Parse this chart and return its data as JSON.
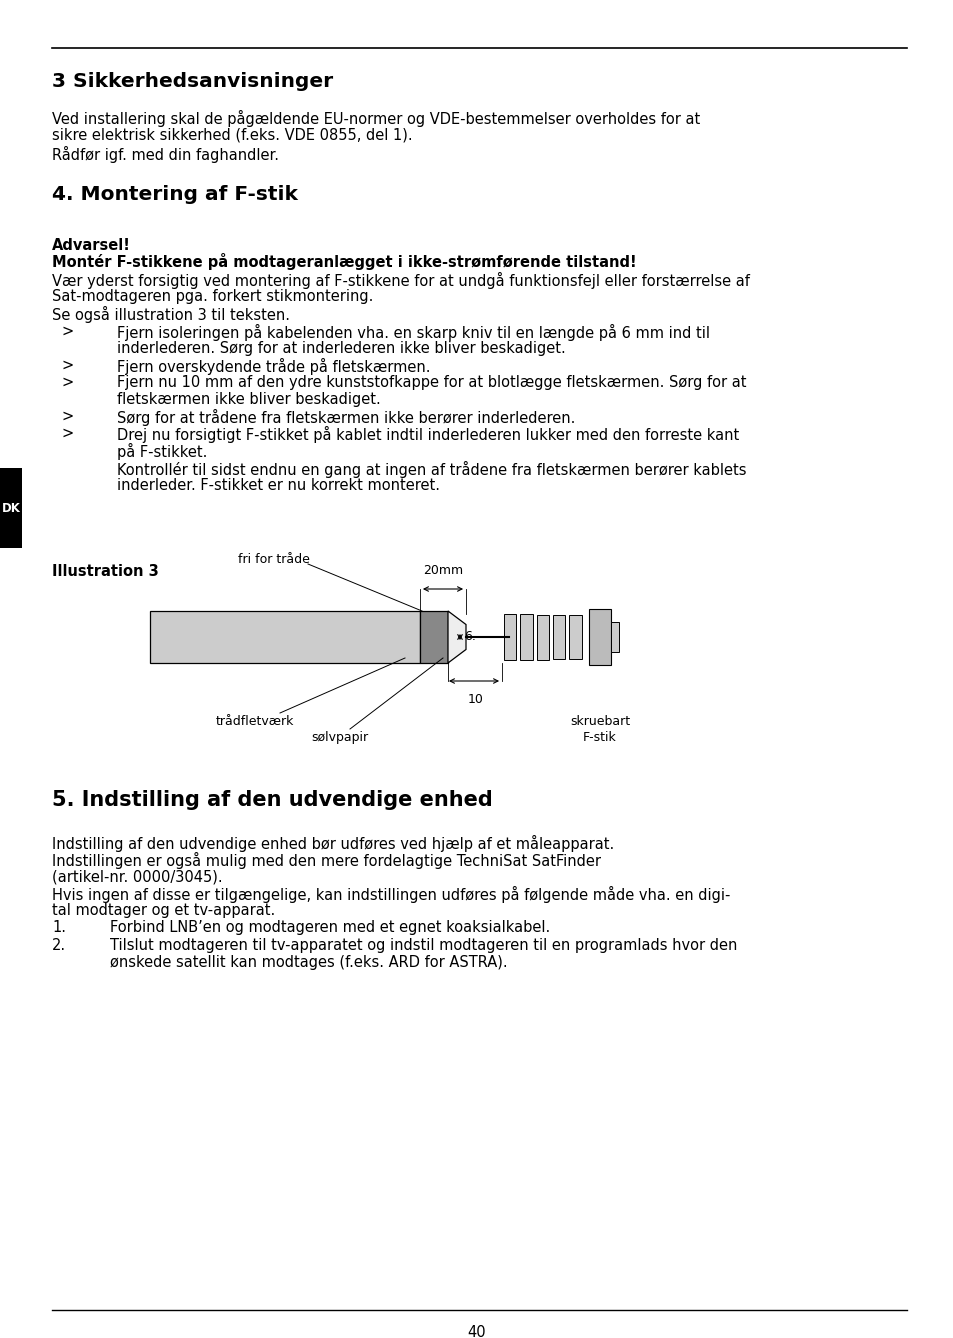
{
  "bg_color": "#ffffff",
  "text_color": "#000000",
  "page_number": "40",
  "sidebar_label": "DK",
  "section3_title": "3 Sikkerhedsanvisninger",
  "section3_body_l1": "Ved installering skal de pågældende EU-normer og VDE-bestemmelser overholdes for at",
  "section3_body_l2": "sikre elektrisk sikkerhed (f.eks. VDE 0855, del 1).",
  "section3_body_l3": "Rådfør igf. med din faghandler.",
  "section4_title": "4. Montering af F-stik",
  "warning_bold1": "Advarsel!",
  "warning_bold2": "Montér F-stikkene på modtageranlægget i ikke-strømførende tilstand!",
  "warning_l1": "Vær yderst forsigtig ved montering af F-stikkene for at undgå funktionsfejl eller forstærrelse af",
  "warning_l2": "Sat-modtageren pga. forkert stikmontering.",
  "warning_l3": "Se også illustration 3 til teksten.",
  "bullet1_l1": "Fjern isoleringen på kabelenden vha. en skarp kniv til en længde på 6 mm ind til",
  "bullet1_l2": "inderlederen. Sørg for at inderlederen ikke bliver beskadiget.",
  "bullet2": "Fjern overskydende tråde på fletskærmen.",
  "bullet3_l1": "Fjern nu 10 mm af den ydre kunststofkappe for at blotlægge fletskærmen. Sørg for at",
  "bullet3_l2": "fletskærmen ikke bliver beskadiget.",
  "bullet4": "Sørg for at trådene fra fletskærmen ikke berører inderlederen.",
  "bullet5_l1": "Drej nu forsigtigt F-stikket på kablet indtil inderlederen lukker med den forreste kant",
  "bullet5_l2": "på F-stikket.",
  "final_l1": "Kontrollér til sidst endnu en gang at ingen af trådene fra fletskærmen berører kablets",
  "final_l2": "inderleder. F-stikket er nu korrekt monteret.",
  "illus_label": "Illustration 3",
  "section5_title": "5. Indstilling af den udvendige enhed",
  "s5_l1": "Indstilling af den udvendige enhed bør udføres ved hjælp af et måleapparat.",
  "s5_l2": "Indstillingen er også mulig med den mere fordelagtige TechniSat SatFinder",
  "s5_l3": "(artikel-nr. 0000/3045).",
  "s5_l4": "Hvis ingen af disse er tilgængelige, kan indstillingen udføres på følgende måde vha. en digi-",
  "s5_l5": "tal modtager og et tv-apparat.",
  "num1": "Forbind LNB’en og modtageren med et egnet koaksialkabel.",
  "num2_l1": "Tilslut modtageren til tv-apparatet og indstil modtageren til en programlads hvor den",
  "num2_l2": "ønskede satellit kan modtages (f.eks. ARD for ASTRA)."
}
